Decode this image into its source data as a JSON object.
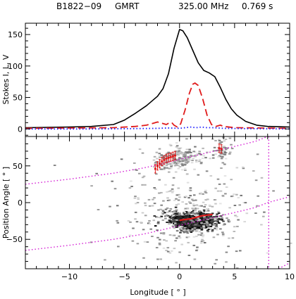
{
  "header": {
    "pulsar": "B1822−09",
    "telescope": "GMRT",
    "frequency": "325.00 MHz",
    "period": "0.769 s"
  },
  "chart_data": [
    {
      "type": "line",
      "panel": "profile",
      "ylabel": "Stokes I, L, V",
      "xlim": [
        -14,
        10
      ],
      "ylim": [
        -12,
        168
      ],
      "yticks": [
        0,
        50,
        100,
        150
      ],
      "series": [
        {
          "style": "solid",
          "color": "#000000",
          "points": [
            [
              -14,
              2
            ],
            [
              -10,
              3
            ],
            [
              -8,
              4
            ],
            [
              -6,
              7
            ],
            [
              -5,
              14
            ],
            [
              -4,
              25
            ],
            [
              -3,
              37
            ],
            [
              -2,
              52
            ],
            [
              -1.5,
              64
            ],
            [
              -1,
              88
            ],
            [
              -0.5,
              128
            ],
            [
              0,
              158
            ],
            [
              0.3,
              156
            ],
            [
              0.7,
              145
            ],
            [
              1.2,
              125
            ],
            [
              1.7,
              105
            ],
            [
              2.2,
              93
            ],
            [
              2.7,
              89
            ],
            [
              3.2,
              83
            ],
            [
              3.7,
              66
            ],
            [
              4.2,
              47
            ],
            [
              4.7,
              32
            ],
            [
              5.2,
              22
            ],
            [
              6,
              12
            ],
            [
              7,
              6
            ],
            [
              8,
              4
            ],
            [
              10,
              3
            ]
          ]
        },
        {
          "style": "dashed",
          "color": "#e01b1b",
          "points": [
            [
              -14,
              1
            ],
            [
              -6,
              2
            ],
            [
              -4,
              4
            ],
            [
              -3,
              6
            ],
            [
              -2.4,
              9
            ],
            [
              -2,
              11
            ],
            [
              -1.6,
              9
            ],
            [
              -1.2,
              7
            ],
            [
              -0.9,
              10
            ],
            [
              -0.7,
              10
            ],
            [
              -0.5,
              6
            ],
            [
              -0.2,
              3
            ],
            [
              0.1,
              8
            ],
            [
              0.5,
              30
            ],
            [
              0.9,
              57
            ],
            [
              1.2,
              71
            ],
            [
              1.4,
              73
            ],
            [
              1.7,
              69
            ],
            [
              2.1,
              48
            ],
            [
              2.5,
              22
            ],
            [
              2.9,
              7
            ],
            [
              3.3,
              4
            ],
            [
              3.7,
              6
            ],
            [
              4,
              4
            ],
            [
              5,
              2
            ],
            [
              10,
              1
            ]
          ]
        },
        {
          "style": "dotted",
          "color": "#1a1aff",
          "points": [
            [
              -14,
              0
            ],
            [
              -8,
              0
            ],
            [
              -4,
              0.5
            ],
            [
              -2,
              1
            ],
            [
              -1,
              1.5
            ],
            [
              0,
              1
            ],
            [
              0.5,
              2
            ],
            [
              1,
              3
            ],
            [
              1.5,
              2
            ],
            [
              2,
              3
            ],
            [
              2.5,
              2
            ],
            [
              3,
              2
            ],
            [
              4,
              1
            ],
            [
              6,
              0.5
            ],
            [
              10,
              0
            ]
          ]
        }
      ]
    },
    {
      "type": "scatter",
      "panel": "position-angle",
      "xlabel": "Longitude [ ° ]",
      "ylabel": "Position Angle [ ° ]",
      "xlim": [
        -14,
        10
      ],
      "ylim": [
        -90,
        90
      ],
      "xticks": [
        -10,
        -5,
        0,
        5,
        10
      ],
      "yticks": [
        -50,
        0,
        50
      ],
      "pa_points": [
        {
          "x": -2.2,
          "y": 46
        },
        {
          "x": -2.0,
          "y": 50
        },
        {
          "x": -1.8,
          "y": 53
        },
        {
          "x": -1.6,
          "y": 56
        },
        {
          "x": -1.4,
          "y": 58
        },
        {
          "x": -1.2,
          "y": 60
        },
        {
          "x": -1.0,
          "y": 61
        },
        {
          "x": -0.8,
          "y": 62
        },
        {
          "x": -0.6,
          "y": 63
        },
        {
          "x": -0.4,
          "y": 64
        },
        {
          "x": 3.6,
          "y": 74
        },
        {
          "x": 3.8,
          "y": 73
        }
      ],
      "pa_track": [
        [
          0,
          -24
        ],
        [
          0.5,
          -23
        ],
        [
          1,
          -22
        ],
        [
          1.5,
          -20
        ],
        [
          2,
          -18
        ],
        [
          2.5,
          -17
        ],
        [
          3,
          -16
        ]
      ],
      "rvm_curves": [
        [
          [
            -14,
            25
          ],
          [
            -10,
            32
          ],
          [
            -6,
            40
          ],
          [
            -3,
            48
          ],
          [
            -1,
            55
          ],
          [
            0,
            59
          ],
          [
            2,
            66
          ],
          [
            4,
            73
          ],
          [
            6,
            80
          ],
          [
            7,
            84
          ],
          [
            8,
            90
          ]
        ],
        [
          [
            -14,
            -65
          ],
          [
            -10,
            -58
          ],
          [
            -6,
            -50
          ],
          [
            -3,
            -42
          ],
          [
            -1,
            -35
          ],
          [
            0,
            -31
          ],
          [
            2,
            -24
          ],
          [
            4,
            -17
          ],
          [
            6,
            -10
          ],
          [
            7,
            -6
          ],
          [
            8,
            0
          ],
          [
            9,
            4
          ],
          [
            10,
            8
          ]
        ],
        [
          [
            8,
            -90
          ],
          [
            8.15,
            -90
          ]
        ],
        [
          [
            9,
            -90
          ],
          [
            10,
            -82
          ]
        ]
      ],
      "rvm_vertical_x": 8.1,
      "clouds": [
        {
          "cx": 1.1,
          "cy": -23,
          "sx": 1.0,
          "sy": 5,
          "n": 900,
          "dark": true
        },
        {
          "cx": 0.2,
          "cy": 63,
          "sx": 1.0,
          "sy": 7,
          "n": 160,
          "dark": false
        },
        {
          "cx": 3.8,
          "cy": 73,
          "sx": 0.35,
          "sy": 8,
          "n": 60,
          "dark": false
        },
        {
          "cx": -1.4,
          "cy": 55,
          "sx": 0.7,
          "sy": 5,
          "n": 60,
          "dark": false
        },
        {
          "cx": 0.5,
          "cy": -20,
          "sx": 2.6,
          "sy": 22,
          "n": 260,
          "dark": false
        },
        {
          "cx": 0.5,
          "cy": 5,
          "sx": 4.5,
          "sy": 55,
          "n": 160,
          "dark": false
        }
      ]
    }
  ]
}
